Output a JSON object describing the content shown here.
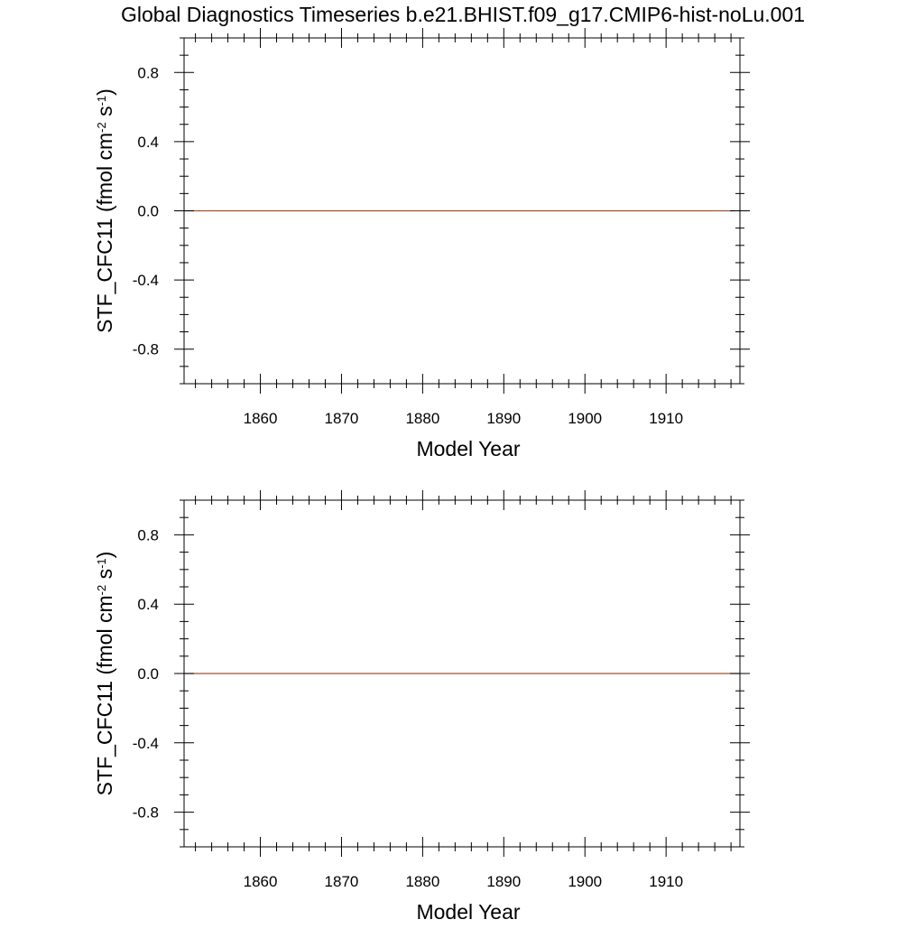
{
  "title": "Global Diagnostics Timeseries b.e21.BHIST.f09_g17.CMIP6-hist-noLu.001",
  "chart_data": [
    {
      "type": "line",
      "xlabel": "Model Year",
      "ylabel": {
        "base": "STF_CFC11 (fmol cm",
        "sup1": "-2",
        "mid": " s",
        "sup2": "-1",
        "end": ")"
      },
      "xlim": [
        1850.6,
        1919.1
      ],
      "ylim": [
        -1.0,
        1.0
      ],
      "x_major_ticks": [
        1860,
        1870,
        1880,
        1890,
        1900,
        1910
      ],
      "x_major_tick_labels": [
        "1860",
        "1870",
        "1880",
        "1890",
        "1900",
        "1910"
      ],
      "y_major_ticks": [
        -0.8,
        -0.4,
        0.0,
        0.4,
        0.8
      ],
      "y_major_tick_labels": [
        "-0.8",
        "-0.4",
        "0.0",
        "0.4",
        "0.8"
      ],
      "series": [
        {
          "x": [
            1850.6,
            1918.5
          ],
          "y": [
            0.0,
            0.0
          ],
          "color": "#a0522d"
        }
      ]
    },
    {
      "type": "line",
      "xlabel": "Model Year",
      "ylabel": {
        "base": "STF_CFC11 (fmol cm",
        "sup1": "-2",
        "mid": " s",
        "sup2": "-1",
        "end": ")"
      },
      "xlim": [
        1850.6,
        1919.1
      ],
      "ylim": [
        -1.0,
        1.0
      ],
      "x_major_ticks": [
        1860,
        1870,
        1880,
        1890,
        1900,
        1910
      ],
      "x_major_tick_labels": [
        "1860",
        "1870",
        "1880",
        "1890",
        "1900",
        "1910"
      ],
      "y_major_ticks": [
        -0.8,
        -0.4,
        0.0,
        0.4,
        0.8
      ],
      "y_major_tick_labels": [
        "-0.8",
        "-0.4",
        "0.0",
        "0.4",
        "0.8"
      ],
      "series": [
        {
          "x": [
            1850.6,
            1919.1
          ],
          "y": [
            0.0,
            0.0
          ],
          "color": "#a0522d"
        }
      ]
    }
  ]
}
